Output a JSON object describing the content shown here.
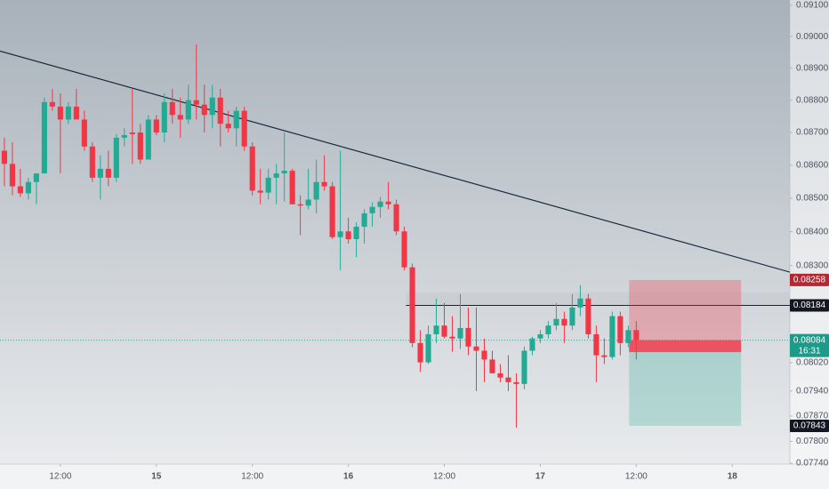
{
  "chart_data": {
    "type": "candlestick",
    "open": [
      0.08644,
      0.08604,
      0.08536,
      0.08515,
      0.08549,
      0.08575,
      0.08794,
      0.0878,
      0.0874,
      0.0878,
      0.0874,
      0.08657,
      0.08562,
      0.08589,
      0.08562,
      0.08684,
      0.087,
      0.087,
      0.08617,
      0.0874,
      0.087,
      0.08794,
      0.08754,
      0.0874,
      0.088,
      0.08786,
      0.08754,
      0.08808,
      0.08727,
      0.08713,
      0.08767,
      0.08657,
      0.08523,
      0.08517,
      0.08562,
      0.08575,
      0.08583,
      0.08482,
      0.08478,
      0.08496,
      0.08549,
      0.08536,
      0.08384,
      0.08401,
      0.08378,
      0.08415,
      0.08455,
      0.08474,
      0.0849,
      0.08482,
      0.08401,
      0.08295,
      0.08076,
      0.08021,
      0.08101,
      0.08126,
      0.08094,
      0.08089,
      0.08119,
      0.08066,
      0.08054,
      0.08029,
      0.0799,
      0.07978,
      0.07965,
      0.0796,
      0.08054,
      0.08089,
      0.08101,
      0.08126,
      0.08145,
      0.08126,
      0.08178,
      0.08204,
      0.08101,
      0.08041,
      0.08036,
      0.08153,
      0.08076,
      0.08113
    ],
    "high": [
      0.08684,
      0.0867,
      0.08589,
      0.08562,
      0.08575,
      0.08808,
      0.08835,
      0.08821,
      0.08794,
      0.08835,
      0.08767,
      0.0867,
      0.0863,
      0.08644,
      0.08695,
      0.08713,
      0.08835,
      0.08727,
      0.08754,
      0.08754,
      0.08821,
      0.08835,
      0.08808,
      0.08848,
      0.08975,
      0.08848,
      0.08848,
      0.08835,
      0.08767,
      0.0878,
      0.0878,
      0.0867,
      0.08589,
      0.08589,
      0.08604,
      0.087,
      0.08589,
      0.08509,
      0.08589,
      0.08617,
      0.0863,
      0.08549,
      0.08644,
      0.08442,
      0.08428,
      0.08467,
      0.08488,
      0.08504,
      0.08549,
      0.08496,
      0.08415,
      0.08306,
      0.08113,
      0.08126,
      0.08204,
      0.08191,
      0.08153,
      0.08217,
      0.08178,
      0.08178,
      0.08089,
      0.08054,
      0.08016,
      0.08041,
      0.0799,
      0.08066,
      0.08094,
      0.08113,
      0.08139,
      0.08191,
      0.08166,
      0.08217,
      0.08243,
      0.08217,
      0.08126,
      0.08089,
      0.08166,
      0.08166,
      0.08126,
      0.08139
    ],
    "low": [
      0.08536,
      0.08509,
      0.08504,
      0.08496,
      0.08482,
      0.08575,
      0.08767,
      0.08575,
      0.08727,
      0.0874,
      0.08644,
      0.08549,
      0.08496,
      0.08536,
      0.08549,
      0.08657,
      0.08604,
      0.08604,
      0.08617,
      0.08692,
      0.0867,
      0.08727,
      0.08684,
      0.08727,
      0.0874,
      0.087,
      0.08713,
      0.08657,
      0.087,
      0.08657,
      0.08644,
      0.08509,
      0.08482,
      0.08496,
      0.08482,
      0.0849,
      0.08482,
      0.0839,
      0.08467,
      0.08455,
      0.08523,
      0.08378,
      0.08286,
      0.08365,
      0.08325,
      0.08365,
      0.08415,
      0.08442,
      0.08467,
      0.0839,
      0.08286,
      0.08064,
      0.07994,
      0.08016,
      0.08076,
      0.08089,
      0.08051,
      0.08059,
      0.08041,
      0.0794,
      0.07965,
      0.0799,
      0.07965,
      0.0794,
      0.07838,
      0.07945,
      0.08041,
      0.08076,
      0.08089,
      0.08113,
      0.08076,
      0.08113,
      0.08153,
      0.08089,
      0.07965,
      0.08016,
      0.08029,
      0.08041,
      0.08064,
      0.08029
    ],
    "close": [
      0.08604,
      0.08536,
      0.08515,
      0.08549,
      0.08575,
      0.08794,
      0.0878,
      0.0874,
      0.0878,
      0.0874,
      0.08657,
      0.08562,
      0.08589,
      0.08562,
      0.08684,
      0.08692,
      0.08695,
      0.08617,
      0.0874,
      0.087,
      0.08794,
      0.08754,
      0.0874,
      0.088,
      0.08786,
      0.08754,
      0.08808,
      0.08727,
      0.08713,
      0.08767,
      0.08657,
      0.08523,
      0.08517,
      0.08562,
      0.08575,
      0.08583,
      0.08482,
      0.08478,
      0.08496,
      0.08549,
      0.08536,
      0.08384,
      0.08401,
      0.08378,
      0.08415,
      0.08455,
      0.08474,
      0.0849,
      0.08482,
      0.08401,
      0.08295,
      0.08076,
      0.08021,
      0.08101,
      0.08126,
      0.08094,
      0.08089,
      0.08119,
      0.08066,
      0.08054,
      0.08029,
      0.0799,
      0.07978,
      0.07965,
      0.0796,
      0.08054,
      0.08089,
      0.08101,
      0.08126,
      0.08145,
      0.08126,
      0.08178,
      0.08204,
      0.08101,
      0.08041,
      0.08036,
      0.08153,
      0.08076,
      0.08113,
      0.08084
    ],
    "up_color": "#22ab94",
    "down_color": "#f23645",
    "log_scale": true,
    "xlim": [
      -0.55,
      98.2
    ],
    "xticks": [
      {
        "value": 7,
        "label": "12:00"
      },
      {
        "value": 19,
        "label": "15"
      },
      {
        "value": 31,
        "label": "12:00"
      },
      {
        "value": 43,
        "label": "16"
      },
      {
        "value": 55,
        "label": "12:00"
      },
      {
        "value": 67,
        "label": "17"
      },
      {
        "value": 79,
        "label": "12:00"
      },
      {
        "value": 91,
        "label": "18"
      }
    ],
    "ylim": [
      0.0774,
      0.091
    ],
    "yticks": [
      {
        "value": 0.091,
        "label": "0.09100"
      },
      {
        "value": 0.09,
        "label": "0.09000"
      },
      {
        "value": 0.089,
        "label": "0.08900"
      },
      {
        "value": 0.088,
        "label": "0.08800"
      },
      {
        "value": 0.087,
        "label": "0.08700"
      },
      {
        "value": 0.086,
        "label": "0.08600"
      },
      {
        "value": 0.085,
        "label": "0.08500"
      },
      {
        "value": 0.084,
        "label": "0.08400"
      },
      {
        "value": 0.083,
        "label": "0.08300"
      },
      {
        "value": 0.0802,
        "label": "0.08020"
      },
      {
        "value": 0.0794,
        "label": "0.07940"
      },
      {
        "value": 0.0787,
        "label": "0.07870"
      },
      {
        "value": 0.078,
        "label": "0.07800"
      },
      {
        "value": 0.0774,
        "label": "0.07740"
      }
    ],
    "trendline": {
      "x": [
        -0.55,
        98.5
      ],
      "y": [
        0.08954,
        0.08279
      ]
    },
    "zone": {
      "x_start": 50.2,
      "low": 0.08184,
      "high": 0.08222
    },
    "level": 0.08184,
    "last_price": 0.08084,
    "countdown": "16:31",
    "position": {
      "x": [
        78.1,
        92.1
      ],
      "stop": 0.08258,
      "entry": 0.0805,
      "target": 0.07843
    }
  }
}
